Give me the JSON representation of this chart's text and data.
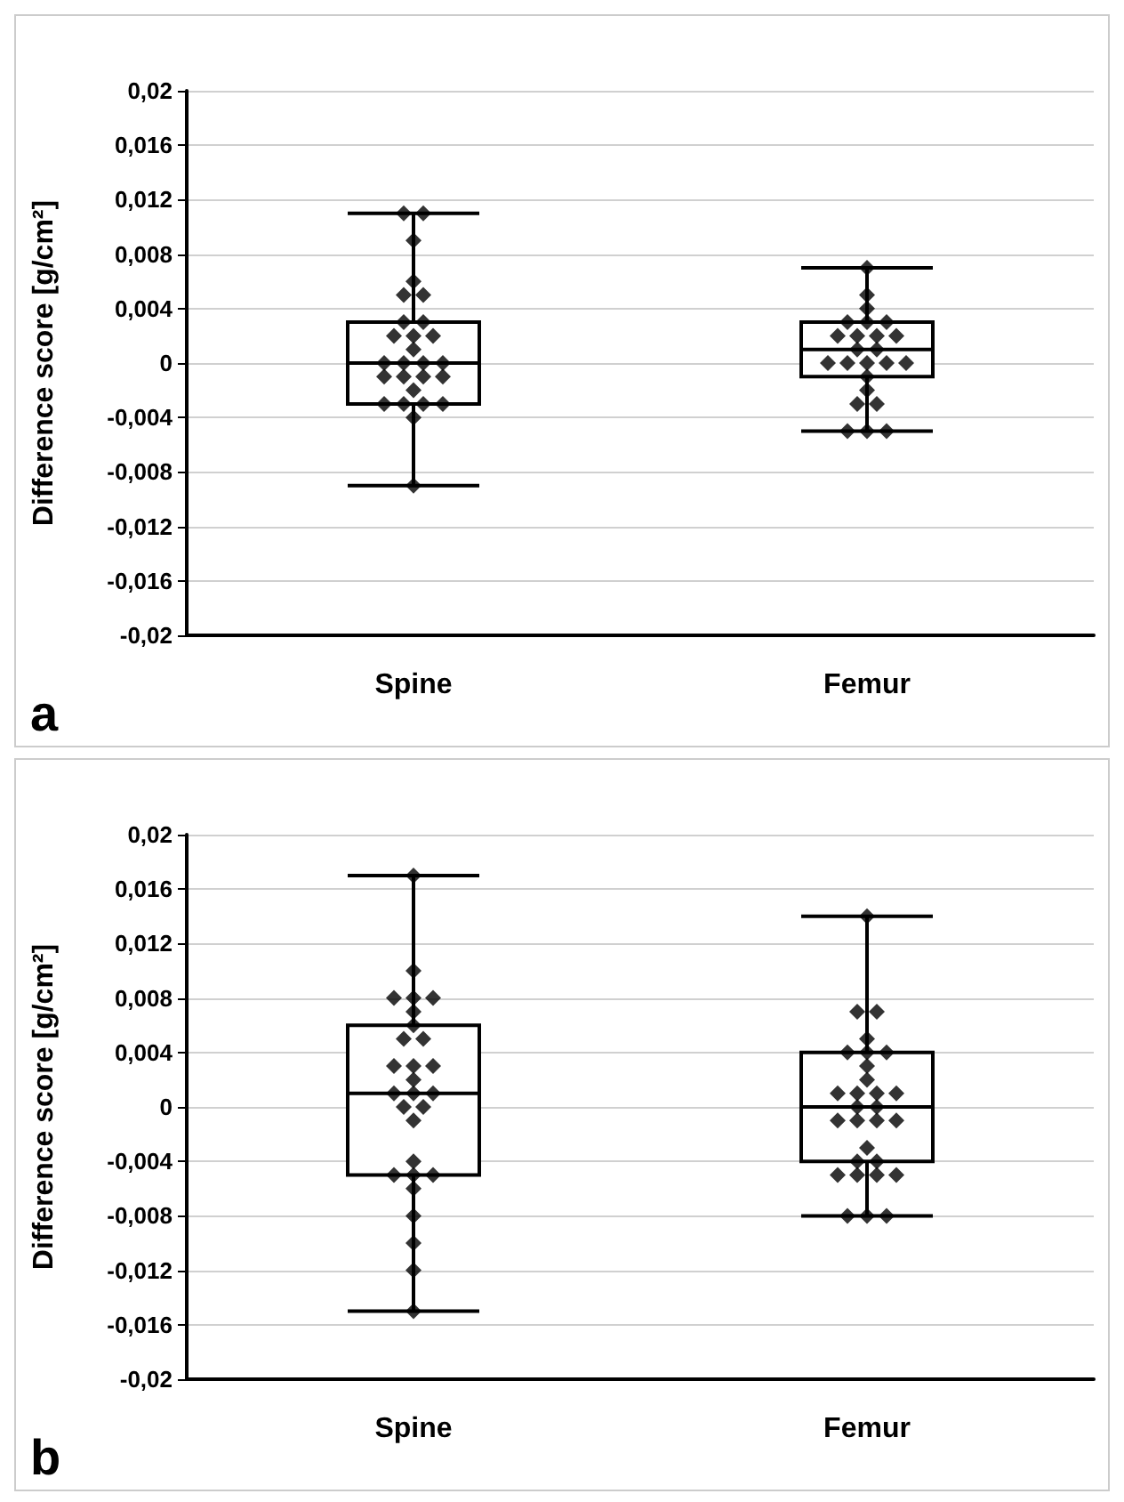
{
  "chart_data": [
    {
      "type": "box",
      "categories": [
        "Spine",
        "Femur"
      ],
      "color": "#000000",
      "ylabel": "Difference score [g/cm²]",
      "annotations": [
        "a"
      ],
      "ylim": [
        -0.02,
        0.02
      ],
      "grid": "y",
      "yticks": [
        {
          "value": -0.02,
          "label": "-0,02"
        },
        {
          "value": -0.016,
          "label": "-0,016"
        },
        {
          "value": -0.012,
          "label": "-0,012"
        },
        {
          "value": -0.008,
          "label": "-0,008"
        },
        {
          "value": -0.004,
          "label": "-0,004"
        },
        0,
        {
          "value": 0.004,
          "label": "0,004"
        },
        {
          "value": 0.008,
          "label": "0,008"
        },
        {
          "value": 0.012,
          "label": "0,012"
        },
        {
          "value": 0.016,
          "label": "0,016"
        },
        {
          "value": 0.02,
          "label": "0,02"
        }
      ],
      "boxes": [
        {
          "low": -0.009,
          "q1": -0.003,
          "median": 0,
          "q3": 0.003,
          "high": 0.011
        },
        {
          "low": -0.005,
          "q1": -0.001,
          "median": 0.001,
          "q3": 0.003,
          "high": 0.007
        }
      ],
      "series": [
        {
          "type": "scatter",
          "marker": "diamond",
          "color": "#000000",
          "x": [
            "Spine",
            "Spine",
            "Spine",
            "Spine",
            "Spine",
            "Spine",
            "Spine",
            "Spine",
            "Spine",
            "Spine",
            "Spine",
            "Spine",
            "Spine",
            "Spine",
            "Spine",
            "Spine",
            "Spine",
            "Spine",
            "Spine",
            "Spine",
            "Spine",
            "Spine",
            "Spine",
            "Spine",
            "Spine",
            "Spine",
            "Spine"
          ],
          "values": [
            0.011,
            0.011,
            0.009,
            0.006,
            0.005,
            0.005,
            0.003,
            0.003,
            0.002,
            0.002,
            0.002,
            0.001,
            0,
            0,
            0,
            0,
            -0.001,
            -0.001,
            -0.001,
            -0.001,
            -0.002,
            -0.003,
            -0.003,
            -0.003,
            -0.003,
            -0.004,
            -0.009
          ]
        },
        {
          "type": "scatter",
          "marker": "diamond",
          "color": "#000000",
          "x": [
            "Femur",
            "Femur",
            "Femur",
            "Femur",
            "Femur",
            "Femur",
            "Femur",
            "Femur",
            "Femur",
            "Femur",
            "Femur",
            "Femur",
            "Femur",
            "Femur",
            "Femur",
            "Femur",
            "Femur",
            "Femur",
            "Femur",
            "Femur",
            "Femur",
            "Femur",
            "Femur",
            "Femur"
          ],
          "values": [
            0.007,
            0.005,
            0.004,
            0.003,
            0.003,
            0.003,
            0.002,
            0.002,
            0.002,
            0.002,
            0.001,
            0.001,
            0,
            0,
            0,
            0,
            0,
            -0.001,
            -0.002,
            -0.003,
            -0.003,
            -0.005,
            -0.005,
            -0.005
          ]
        }
      ]
    },
    {
      "type": "box",
      "categories": [
        "Spine",
        "Femur"
      ],
      "color": "#000000",
      "ylabel": "Difference score [g/cm²]",
      "annotations": [
        "b"
      ],
      "ylim": [
        -0.02,
        0.02
      ],
      "grid": "y",
      "yticks": [
        {
          "value": -0.02,
          "label": "-0,02"
        },
        {
          "value": -0.016,
          "label": "-0,016"
        },
        {
          "value": -0.012,
          "label": "-0,012"
        },
        {
          "value": -0.008,
          "label": "-0,008"
        },
        {
          "value": -0.004,
          "label": "-0,004"
        },
        0,
        {
          "value": 0.004,
          "label": "0,004"
        },
        {
          "value": 0.008,
          "label": "0,008"
        },
        {
          "value": 0.012,
          "label": "0,012"
        },
        {
          "value": 0.016,
          "label": "0,016"
        },
        {
          "value": 0.02,
          "label": "0,02"
        }
      ],
      "boxes": [
        {
          "low": -0.015,
          "q1": -0.005,
          "median": 0.001,
          "q3": 0.006,
          "high": 0.017
        },
        {
          "low": -0.008,
          "q1": -0.004,
          "median": 0,
          "q3": 0.004,
          "high": 0.014
        }
      ],
      "series": [
        {
          "type": "scatter",
          "marker": "diamond",
          "color": "#000000",
          "x": [
            "Spine",
            "Spine",
            "Spine",
            "Spine",
            "Spine",
            "Spine",
            "Spine",
            "Spine",
            "Spine",
            "Spine",
            "Spine",
            "Spine",
            "Spine",
            "Spine",
            "Spine",
            "Spine",
            "Spine",
            "Spine",
            "Spine",
            "Spine",
            "Spine",
            "Spine",
            "Spine",
            "Spine",
            "Spine",
            "Spine",
            "Spine",
            "Spine"
          ],
          "values": [
            0.017,
            0.01,
            0.008,
            0.008,
            0.008,
            0.007,
            0.006,
            0.005,
            0.005,
            0.003,
            0.003,
            0.003,
            0.002,
            0.001,
            0.001,
            0.001,
            0,
            0,
            -0.001,
            -0.004,
            -0.005,
            -0.005,
            -0.005,
            -0.006,
            -0.008,
            -0.01,
            -0.012,
            -0.015
          ]
        },
        {
          "type": "scatter",
          "marker": "diamond",
          "color": "#000000",
          "x": [
            "Femur",
            "Femur",
            "Femur",
            "Femur",
            "Femur",
            "Femur",
            "Femur",
            "Femur",
            "Femur",
            "Femur",
            "Femur",
            "Femur",
            "Femur",
            "Femur",
            "Femur",
            "Femur",
            "Femur",
            "Femur",
            "Femur",
            "Femur",
            "Femur",
            "Femur",
            "Femur",
            "Femur",
            "Femur",
            "Femur",
            "Femur",
            "Femur",
            "Femur"
          ],
          "values": [
            0.014,
            0.007,
            0.007,
            0.005,
            0.004,
            0.004,
            0.004,
            0.003,
            0.002,
            0.001,
            0.001,
            0.001,
            0.001,
            0,
            0,
            -0.001,
            -0.001,
            -0.001,
            -0.001,
            -0.003,
            -0.004,
            -0.004,
            -0.005,
            -0.005,
            -0.005,
            -0.005,
            -0.008,
            -0.008,
            -0.008
          ]
        }
      ]
    }
  ]
}
